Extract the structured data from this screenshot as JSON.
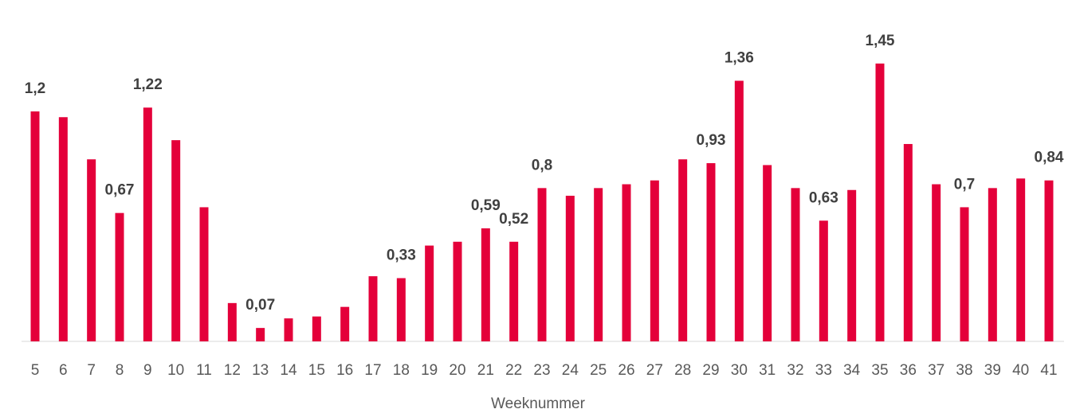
{
  "chart_data": {
    "type": "bar",
    "x_label": "Weeknummer",
    "categories": [
      "5",
      "6",
      "7",
      "8",
      "9",
      "10",
      "11",
      "12",
      "13",
      "14",
      "15",
      "16",
      "17",
      "18",
      "19",
      "20",
      "21",
      "22",
      "23",
      "24",
      "25",
      "26",
      "27",
      "28",
      "29",
      "30",
      "31",
      "32",
      "33",
      "34",
      "35",
      "36",
      "37",
      "38",
      "39",
      "40",
      "41"
    ],
    "values": [
      1.2,
      1.17,
      0.95,
      0.67,
      1.22,
      1.05,
      0.7,
      0.2,
      0.07,
      0.12,
      0.13,
      0.18,
      0.34,
      0.33,
      0.5,
      0.52,
      0.59,
      0.52,
      0.8,
      0.76,
      0.8,
      0.82,
      0.84,
      0.95,
      0.93,
      1.36,
      0.92,
      0.8,
      0.63,
      0.79,
      1.45,
      1.03,
      0.82,
      0.7,
      0.8,
      0.85,
      0.84
    ],
    "value_labels": [
      "1,2",
      null,
      null,
      "0,67",
      "1,22",
      null,
      null,
      null,
      "0,07",
      null,
      null,
      null,
      null,
      "0,33",
      null,
      null,
      "0,59",
      "0,52",
      "0,8",
      null,
      null,
      null,
      null,
      null,
      "0,93",
      "1,36",
      null,
      null,
      "0,63",
      null,
      "1,45",
      null,
      null,
      "0,7",
      null,
      null,
      "0,84"
    ],
    "color": "#e4003a",
    "ylim": [
      0,
      1.6
    ],
    "grid": false
  }
}
